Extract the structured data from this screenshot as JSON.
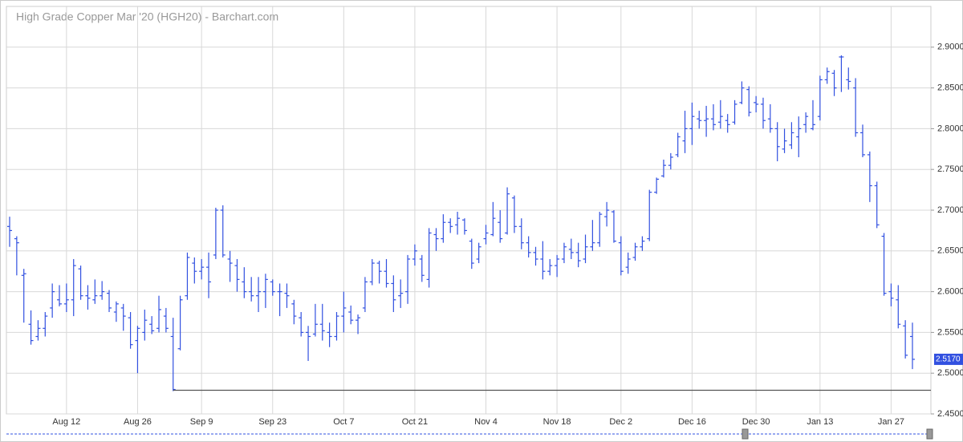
{
  "chart_data": {
    "type": "ohlc",
    "title": "High Grade Copper Mar '20 (HGH20) - Barchart.com",
    "categories": [
      null,
      null,
      null,
      null,
      null,
      null,
      null,
      null,
      "Aug 12",
      null,
      null,
      null,
      null,
      null,
      null,
      null,
      null,
      null,
      "Aug 26",
      null,
      null,
      null,
      null,
      null,
      null,
      null,
      null,
      "Sep 9",
      null,
      null,
      null,
      null,
      null,
      null,
      null,
      null,
      null,
      "Sep 23",
      null,
      null,
      null,
      null,
      null,
      null,
      null,
      null,
      null,
      "Oct 7",
      null,
      null,
      null,
      null,
      null,
      null,
      null,
      null,
      null,
      "Oct 21",
      null,
      null,
      null,
      null,
      null,
      null,
      null,
      null,
      null,
      "Nov 4",
      null,
      null,
      null,
      null,
      null,
      null,
      null,
      null,
      null,
      "Nov 18",
      null,
      null,
      null,
      null,
      null,
      null,
      null,
      null,
      "Dec 2",
      null,
      null,
      null,
      null,
      null,
      null,
      null,
      null,
      null,
      "Dec 16",
      null,
      null,
      null,
      null,
      null,
      null,
      null,
      null,
      "Dec 30",
      null,
      null,
      null,
      null,
      null,
      null,
      null,
      null,
      "Jan 13",
      null,
      null,
      null,
      null,
      null,
      null,
      null,
      null,
      null,
      "Jan 27",
      null,
      null,
      null
    ],
    "open": [
      2.68,
      2.665,
      2.62,
      2.56,
      2.545,
      2.555,
      2.58,
      2.59,
      2.585,
      2.59,
      2.628,
      2.595,
      2.59,
      2.595,
      2.598,
      2.575,
      2.58,
      2.568,
      2.54,
      2.55,
      2.56,
      2.555,
      2.57,
      2.545,
      2.53,
      2.595,
      2.635,
      2.625,
      2.63,
      2.645,
      2.7,
      2.64,
      2.632,
      2.612,
      2.6,
      2.595,
      2.6,
      2.612,
      2.6,
      2.598,
      2.585,
      2.568,
      2.55,
      2.548,
      2.56,
      2.55,
      2.545,
      2.57,
      2.575,
      2.565,
      2.58,
      2.612,
      2.635,
      2.625,
      2.61,
      2.595,
      2.6,
      2.64,
      2.64,
      2.615,
      2.67,
      2.665,
      2.685,
      2.682,
      2.688,
      2.662,
      2.64,
      2.665,
      2.67,
      2.685,
      2.672,
      2.715,
      2.68,
      2.66,
      2.648,
      2.64,
      2.625,
      2.632,
      2.64,
      2.652,
      2.648,
      2.64,
      2.655,
      2.66,
      2.692,
      2.698,
      2.66,
      2.63,
      2.642,
      2.655,
      2.665,
      2.722,
      2.742,
      2.755,
      2.768,
      2.785,
      2.8,
      2.812,
      2.81,
      2.812,
      2.808,
      2.81,
      2.808,
      2.832,
      2.848,
      2.832,
      2.83,
      2.812,
      2.8,
      2.775,
      2.78,
      2.79,
      2.805,
      2.8,
      2.815,
      2.86,
      2.868,
      2.888,
      2.86,
      2.85,
      2.795,
      2.768,
      2.73,
      2.668,
      2.6,
      2.59,
      2.558,
      2.545
    ],
    "high": [
      2.692,
      2.668,
      2.628,
      2.577,
      2.565,
      2.575,
      2.61,
      2.608,
      2.61,
      2.64,
      2.632,
      2.608,
      2.615,
      2.613,
      2.602,
      2.588,
      2.585,
      2.575,
      2.558,
      2.578,
      2.57,
      2.595,
      2.58,
      2.568,
      2.595,
      2.648,
      2.642,
      2.64,
      2.648,
      2.703,
      2.706,
      2.65,
      2.64,
      2.63,
      2.618,
      2.618,
      2.622,
      2.615,
      2.61,
      2.61,
      2.59,
      2.575,
      2.558,
      2.585,
      2.585,
      2.562,
      2.575,
      2.6,
      2.583,
      2.572,
      2.618,
      2.64,
      2.638,
      2.64,
      2.62,
      2.615,
      2.645,
      2.658,
      2.645,
      2.678,
      2.678,
      2.695,
      2.69,
      2.698,
      2.69,
      2.665,
      2.66,
      2.682,
      2.71,
      2.7,
      2.728,
      2.718,
      2.69,
      2.668,
      2.655,
      2.662,
      2.64,
      2.645,
      2.66,
      2.665,
      2.66,
      2.67,
      2.688,
      2.698,
      2.71,
      2.7,
      2.668,
      2.648,
      2.66,
      2.668,
      2.725,
      2.74,
      2.762,
      2.77,
      2.795,
      2.822,
      2.832,
      2.822,
      2.828,
      2.83,
      2.835,
      2.818,
      2.835,
      2.858,
      2.852,
      2.84,
      2.838,
      2.83,
      2.808,
      2.8,
      2.808,
      2.815,
      2.82,
      2.835,
      2.865,
      2.875,
      2.872,
      2.89,
      2.875,
      2.862,
      2.805,
      2.772,
      2.735,
      2.672,
      2.61,
      2.608,
      2.565,
      2.562
    ],
    "low": [
      2.655,
      2.62,
      2.562,
      2.535,
      2.54,
      2.545,
      2.568,
      2.582,
      2.575,
      2.57,
      2.59,
      2.578,
      2.585,
      2.59,
      2.575,
      2.563,
      2.552,
      2.53,
      2.5,
      2.54,
      2.548,
      2.55,
      2.55,
      2.478,
      2.528,
      2.59,
      2.61,
      2.615,
      2.592,
      2.64,
      2.642,
      2.612,
      2.6,
      2.592,
      2.588,
      2.575,
      2.58,
      2.595,
      2.57,
      2.58,
      2.56,
      2.545,
      2.515,
      2.545,
      2.54,
      2.532,
      2.54,
      2.55,
      2.56,
      2.548,
      2.575,
      2.608,
      2.61,
      2.605,
      2.575,
      2.58,
      2.585,
      2.632,
      2.612,
      2.605,
      2.65,
      2.66,
      2.672,
      2.67,
      2.67,
      2.628,
      2.635,
      2.658,
      2.668,
      2.66,
      2.67,
      2.672,
      2.652,
      2.642,
      2.632,
      2.615,
      2.62,
      2.618,
      2.635,
      2.64,
      2.63,
      2.635,
      2.65,
      2.655,
      2.68,
      2.66,
      2.62,
      2.622,
      2.638,
      2.65,
      2.662,
      2.72,
      2.74,
      2.75,
      2.765,
      2.77,
      2.78,
      2.8,
      2.79,
      2.798,
      2.8,
      2.795,
      2.805,
      2.83,
      2.815,
      2.82,
      2.8,
      2.795,
      2.76,
      2.77,
      2.775,
      2.765,
      2.795,
      2.798,
      2.81,
      2.855,
      2.84,
      2.845,
      2.848,
      2.79,
      2.765,
      2.71,
      2.678,
      2.595,
      2.582,
      2.555,
      2.518,
      2.505
    ],
    "close": [
      2.675,
      2.66,
      2.622,
      2.54,
      2.555,
      2.57,
      2.6,
      2.585,
      2.59,
      2.632,
      2.595,
      2.592,
      2.595,
      2.6,
      2.58,
      2.585,
      2.57,
      2.535,
      2.555,
      2.565,
      2.552,
      2.578,
      2.555,
      2.48,
      2.59,
      2.642,
      2.625,
      2.63,
      2.612,
      2.7,
      2.645,
      2.635,
      2.615,
      2.6,
      2.595,
      2.6,
      2.615,
      2.6,
      2.6,
      2.595,
      2.57,
      2.55,
      2.545,
      2.56,
      2.552,
      2.545,
      2.57,
      2.58,
      2.565,
      2.568,
      2.612,
      2.635,
      2.625,
      2.61,
      2.59,
      2.598,
      2.64,
      2.65,
      2.62,
      2.672,
      2.665,
      2.685,
      2.68,
      2.69,
      2.675,
      2.635,
      2.655,
      2.672,
      2.69,
      2.665,
      2.72,
      2.68,
      2.66,
      2.648,
      2.64,
      2.625,
      2.632,
      2.64,
      2.655,
      2.648,
      2.638,
      2.655,
      2.66,
      2.695,
      2.7,
      2.662,
      2.625,
      2.64,
      2.655,
      2.662,
      2.722,
      2.738,
      2.755,
      2.765,
      2.79,
      2.8,
      2.815,
      2.81,
      2.812,
      2.805,
      2.815,
      2.805,
      2.83,
      2.85,
      2.82,
      2.83,
      2.81,
      2.8,
      2.778,
      2.785,
      2.795,
      2.8,
      2.815,
      2.805,
      2.86,
      2.87,
      2.85,
      2.888,
      2.858,
      2.795,
      2.768,
      2.73,
      2.682,
      2.598,
      2.592,
      2.56,
      2.522,
      2.517
    ],
    "color": "#3150e0",
    "ylim": [
      2.45,
      2.95
    ],
    "yticks": [
      {
        "value": 2.45,
        "label": "2.4500"
      },
      {
        "value": 2.5,
        "label": "2.5000"
      },
      {
        "value": 2.55,
        "label": "2.5500"
      },
      {
        "value": 2.6,
        "label": "2.6000"
      },
      {
        "value": 2.65,
        "label": "2.6500"
      },
      {
        "value": 2.7,
        "label": "2.7000"
      },
      {
        "value": 2.75,
        "label": "2.7500"
      },
      {
        "value": 2.8,
        "label": "2.8000"
      },
      {
        "value": 2.85,
        "label": "2.8500"
      },
      {
        "value": 2.9,
        "label": "2.9000"
      }
    ],
    "last_price": {
      "value": 2.517,
      "label": "2.5170"
    },
    "low_line": 2.479,
    "grid": true
  }
}
